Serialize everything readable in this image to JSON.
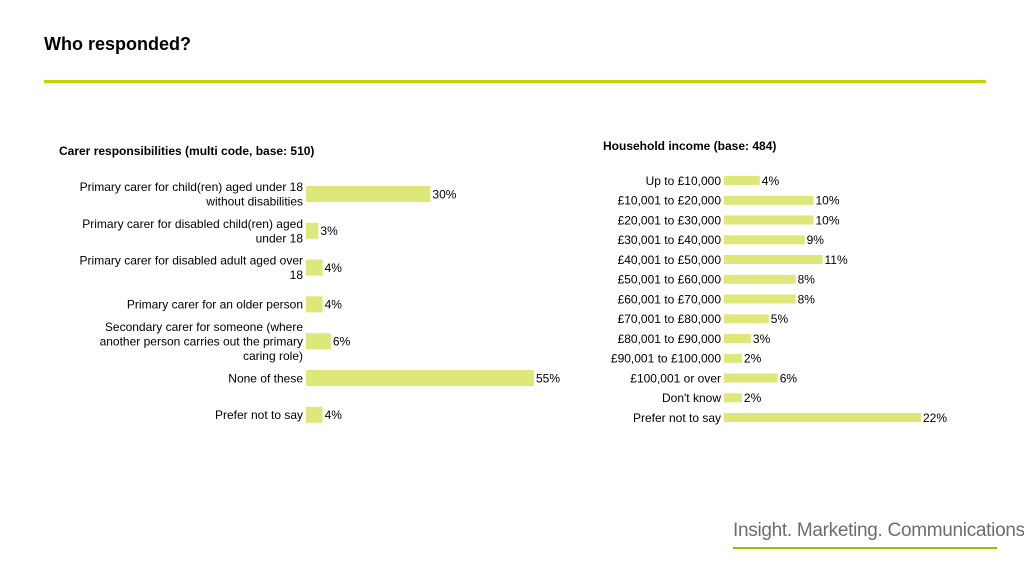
{
  "page": {
    "title": "Who responded?",
    "accent_color": "#c5d300",
    "bar_color": "#dde77a",
    "footer_text": "Insight. Marketing. Communications.",
    "footer_rule_color": "#a5b800"
  },
  "chart_data": [
    {
      "type": "bar",
      "orientation": "horizontal",
      "title": "Carer responsibilities (multi code, base: 510)",
      "categories": [
        [
          "Primary carer for child(ren) aged under 18",
          "without disabilities"
        ],
        [
          "Primary carer for disabled child(ren) aged",
          "under 18"
        ],
        [
          "Primary carer for disabled adult aged over",
          "18"
        ],
        [
          "Primary carer for an older person"
        ],
        [
          "Secondary carer for someone (where",
          "another person carries out the primary",
          "caring role)"
        ],
        [
          "None of these"
        ],
        [
          "Prefer not to say"
        ]
      ],
      "values": [
        30,
        3,
        4,
        4,
        6,
        55,
        4
      ],
      "value_labels": [
        "30%",
        "3%",
        "4%",
        "4%",
        "6%",
        "55%",
        "4%"
      ],
      "unit": "%",
      "xlim": [
        0,
        55
      ]
    },
    {
      "type": "bar",
      "orientation": "horizontal",
      "title": "Household income (base: 484)",
      "categories": [
        [
          "Up to £10,000"
        ],
        [
          "£10,001 to £20,000"
        ],
        [
          "£20,001 to £30,000"
        ],
        [
          "£30,001 to £40,000"
        ],
        [
          "£40,001 to £50,000"
        ],
        [
          "£50,001 to £60,000"
        ],
        [
          "£60,001 to £70,000"
        ],
        [
          "£70,001 to £80,000"
        ],
        [
          "£80,001 to £90,000"
        ],
        [
          "£90,001 to £100,000"
        ],
        [
          "£100,001 or over"
        ],
        [
          "Don't know"
        ],
        [
          "Prefer not to say"
        ]
      ],
      "values": [
        4,
        10,
        10,
        9,
        11,
        8,
        8,
        5,
        3,
        2,
        6,
        2,
        22
      ],
      "value_labels": [
        "4%",
        "10%",
        "10%",
        "9%",
        "11%",
        "8%",
        "8%",
        "5%",
        "3%",
        "2%",
        "6%",
        "2%",
        "22%"
      ],
      "unit": "%",
      "xlim": [
        0,
        22
      ]
    }
  ]
}
